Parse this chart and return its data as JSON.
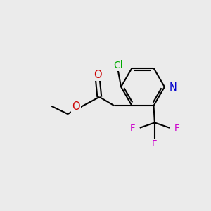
{
  "background_color": "#ebebeb",
  "atom_colors": {
    "C": "#000000",
    "N": "#0000cc",
    "O": "#cc0000",
    "Cl": "#00aa00",
    "F": "#cc00cc"
  },
  "bond_color": "#000000",
  "bond_width": 1.5,
  "figsize": [
    3.0,
    3.0
  ],
  "dpi": 100
}
